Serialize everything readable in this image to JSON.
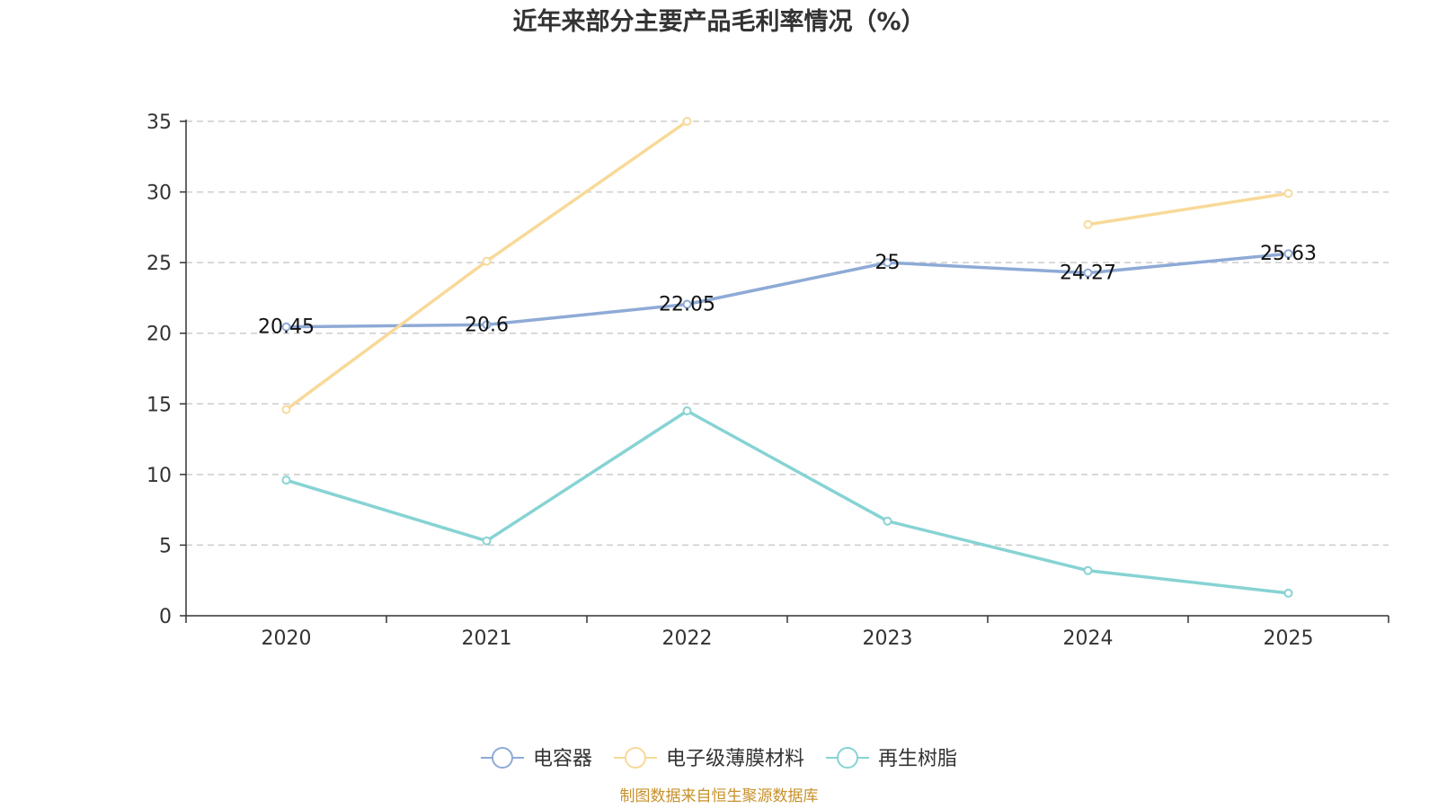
{
  "chart_data": {
    "type": "line",
    "title": "近年来部分主要产品毛利率情况（%）",
    "categories": [
      "2020",
      "2021",
      "2022",
      "2023",
      "2024",
      "2025"
    ],
    "ylim": [
      0,
      35
    ],
    "yticks": [
      "0",
      "5",
      "10",
      "15",
      "20",
      "25",
      "30",
      "35"
    ],
    "grid": true,
    "legend_position": "bottom-center",
    "series": [
      {
        "name": "电容器",
        "color": "#8eaad6",
        "values": [
          20.45,
          20.6,
          22.05,
          25,
          24.27,
          25.63
        ],
        "labels": [
          "20.45",
          "20.6",
          "22.05",
          "25",
          "24.27",
          "25.63"
        ]
      },
      {
        "name": "电子级薄膜材料",
        "color": "#f8d998",
        "values": [
          14.6,
          25.1,
          35.0,
          null,
          27.7,
          29.9
        ],
        "labels": null
      },
      {
        "name": "再生树脂",
        "color": "#87d3d4",
        "values": [
          9.6,
          5.3,
          14.5,
          6.7,
          3.2,
          1.6
        ],
        "labels": null
      }
    ],
    "source": "制图数据来自恒生聚源数据库"
  }
}
